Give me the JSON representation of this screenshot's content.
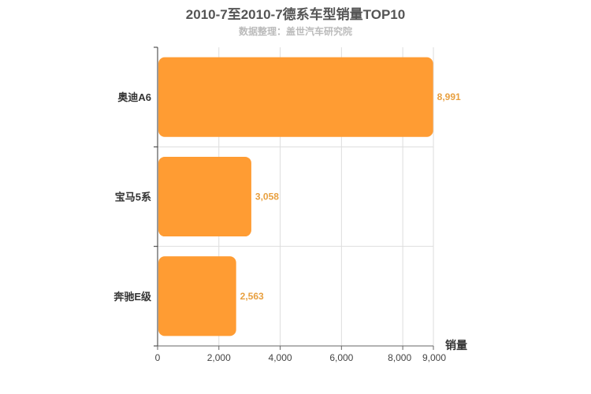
{
  "chart_data": {
    "type": "bar",
    "orientation": "horizontal",
    "title": "2010-7至2010-7德系车型销量TOP10",
    "subtitle": "数据整理：盖世汽车研究院",
    "xlabel": "销量",
    "categories": [
      "奥迪A6",
      "宝马5系",
      "奔驰E级"
    ],
    "values": [
      8991,
      3058,
      2563
    ],
    "value_labels": [
      "8,991",
      "3,058",
      "2,563"
    ],
    "xlim": [
      0,
      9000
    ],
    "ticks": [
      0,
      2000,
      4000,
      6000,
      8000,
      9000
    ],
    "tick_labels": [
      "0",
      "2,000",
      "4,000",
      "6,000",
      "8,000",
      "9,000"
    ],
    "grid": true,
    "bar_color": "#ff9c33",
    "label_color": "#e8a040"
  }
}
